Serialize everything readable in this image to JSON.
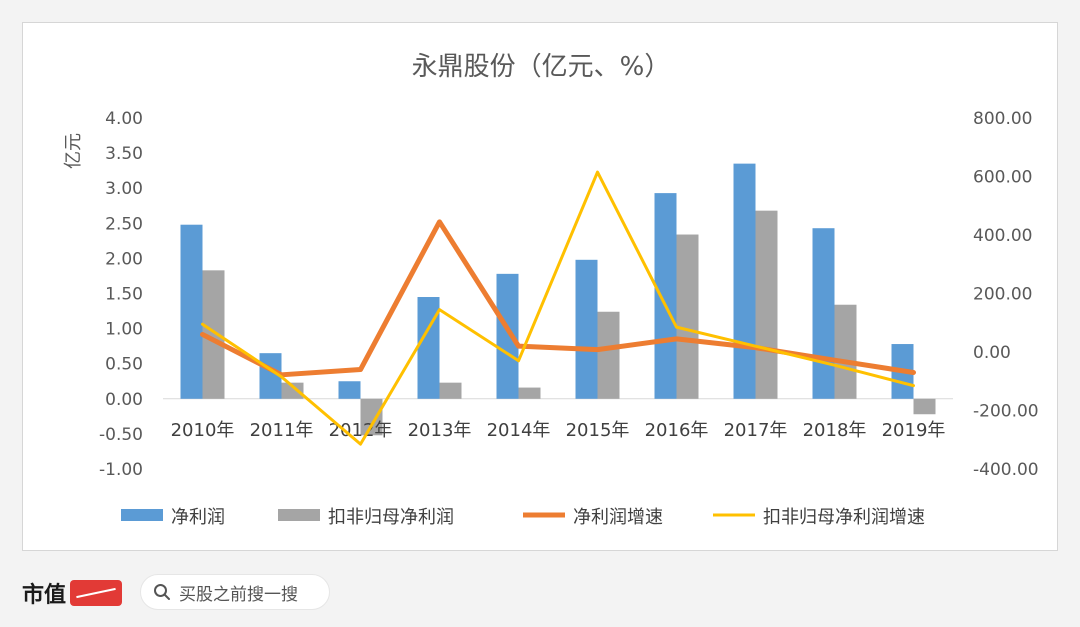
{
  "chart_data": {
    "type": "bar",
    "title": "永鼎股份（亿元、%）",
    "ylabel": "亿元",
    "categories": [
      "2010年",
      "2011年",
      "2012年",
      "2013年",
      "2014年",
      "2015年",
      "2016年",
      "2017年",
      "2018年",
      "2019年"
    ],
    "left_axis": {
      "min": -1.0,
      "max": 4.0,
      "step": 0.5,
      "ticks": [
        "4.00",
        "3.50",
        "3.00",
        "2.50",
        "2.00",
        "1.50",
        "1.00",
        "0.50",
        "0.00",
        "-0.50",
        "-1.00"
      ]
    },
    "right_axis": {
      "min": -400,
      "max": 800,
      "step": 200,
      "ticks": [
        "800.00",
        "600.00",
        "400.00",
        "200.00",
        "0.00",
        "-200.00",
        "-400.00"
      ]
    },
    "series": [
      {
        "name": "净利润",
        "type": "bar",
        "axis": "left",
        "color": "#5b9bd5",
        "values": [
          2.48,
          0.65,
          0.25,
          1.45,
          1.78,
          1.98,
          2.93,
          3.35,
          2.43,
          0.78
        ]
      },
      {
        "name": "扣非归母净利润",
        "type": "bar",
        "axis": "left",
        "color": "#a5a5a5",
        "values": [
          1.83,
          0.23,
          -0.52,
          0.23,
          0.16,
          1.24,
          2.34,
          2.68,
          1.34,
          -0.22
        ]
      },
      {
        "name": "净利润增速",
        "type": "line",
        "axis": "right",
        "color": "#ed7d31",
        "values": [
          60,
          -78,
          -60,
          445,
          20,
          8,
          45,
          15,
          -28,
          -70
        ]
      },
      {
        "name": "扣非归母净利润增速",
        "type": "line",
        "axis": "right",
        "color": "#ffc000",
        "values": [
          95,
          -85,
          -315,
          145,
          -30,
          615,
          85,
          20,
          -45,
          -115
        ]
      }
    ],
    "legend_position": "bottom",
    "grid": false
  },
  "footer": {
    "logo_text": "市值",
    "search_placeholder": "买股之前搜一搜"
  }
}
